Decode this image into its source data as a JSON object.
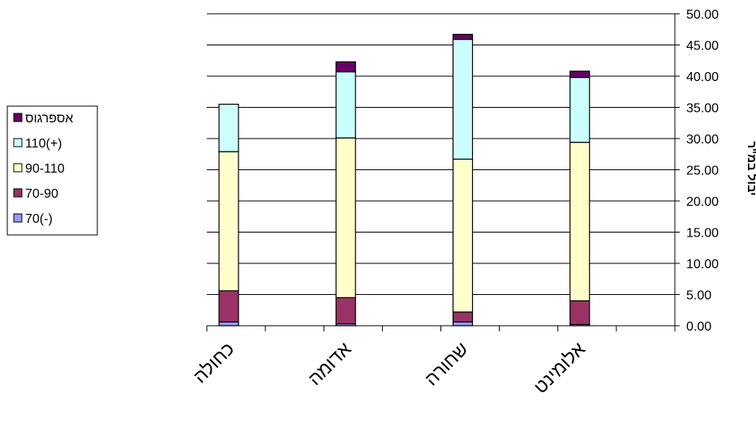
{
  "chart_data": {
    "type": "bar",
    "stacked": true,
    "title": "",
    "xlabel": "",
    "ylabel": "יבול במ\"ר",
    "ylim": [
      0,
      50
    ],
    "y_ticks": [
      "0.00",
      "5.00",
      "10.00",
      "15.00",
      "20.00",
      "25.00",
      "30.00",
      "35.00",
      "40.00",
      "45.00",
      "50.00"
    ],
    "y_axis_position": "right",
    "grid": true,
    "legend_position": "left",
    "categories": [
      "כחולה",
      "אדומה",
      "שחורה",
      "אלומינט"
    ],
    "series": [
      {
        "name": "70(-)",
        "color": "#9999ff",
        "values": [
          0.6,
          0.3,
          0.6,
          0.2
        ]
      },
      {
        "name": "70-90",
        "color": "#993366",
        "values": [
          5.0,
          4.2,
          1.6,
          3.8
        ]
      },
      {
        "name": "90-110",
        "color": "#ffffcc",
        "values": [
          22.3,
          25.6,
          24.5,
          25.4
        ]
      },
      {
        "name": "110(+)",
        "color": "#ccffff",
        "values": [
          7.6,
          10.6,
          19.2,
          10.4
        ]
      },
      {
        "name": "אספרגוס",
        "color": "#660066",
        "values": [
          0.0,
          1.6,
          0.8,
          1.0
        ]
      }
    ]
  }
}
